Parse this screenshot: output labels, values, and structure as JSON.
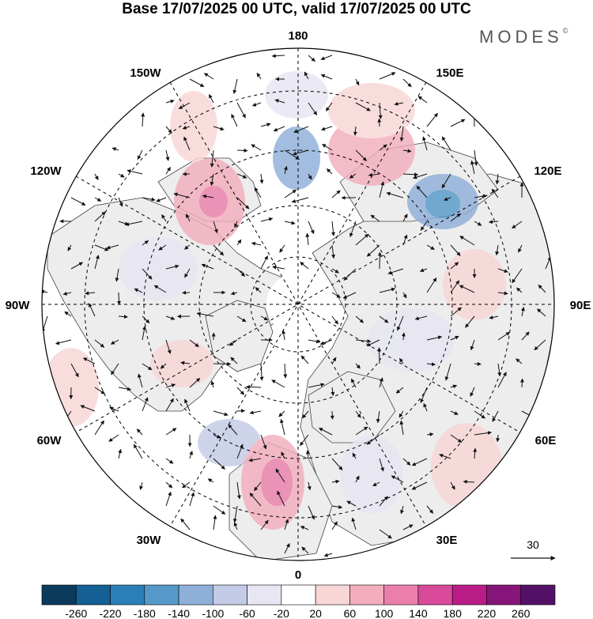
{
  "title": "Base 17/07/2025 00 UTC, valid 17/07/2025 00 UTC",
  "brand": "MODES",
  "brand_mark": "©",
  "map": {
    "projection": "north-polar-stereographic",
    "longitude_labels": {
      "top": "180",
      "bottom": "0",
      "left": "90W",
      "right": "90E",
      "upper_left_1": "150W",
      "upper_left_2": "120W",
      "upper_right_1": "150E",
      "upper_right_2": "120E",
      "lower_left_1": "60W",
      "lower_left_2": "30W",
      "lower_right_1": "60E",
      "lower_right_2": "30E"
    },
    "wind_reference_label": "30",
    "colors": {
      "land_fill": "#ededed",
      "coastline": "#333333",
      "graticule": "#000000"
    }
  },
  "colorbar": {
    "labels": [
      "-260",
      "-220",
      "-180",
      "-140",
      "-100",
      "-60",
      "-20",
      "20",
      "60",
      "100",
      "140",
      "180",
      "220",
      "260"
    ],
    "colors": [
      "#0b3a5c",
      "#145f93",
      "#2b7fb8",
      "#5599c9",
      "#8eafd8",
      "#c3cbe6",
      "#e7e6f2",
      "#ffffff",
      "#f8d6d6",
      "#f2aebd",
      "#eb7fac",
      "#d94a9b",
      "#b91c87",
      "#861579",
      "#531067"
    ]
  }
}
